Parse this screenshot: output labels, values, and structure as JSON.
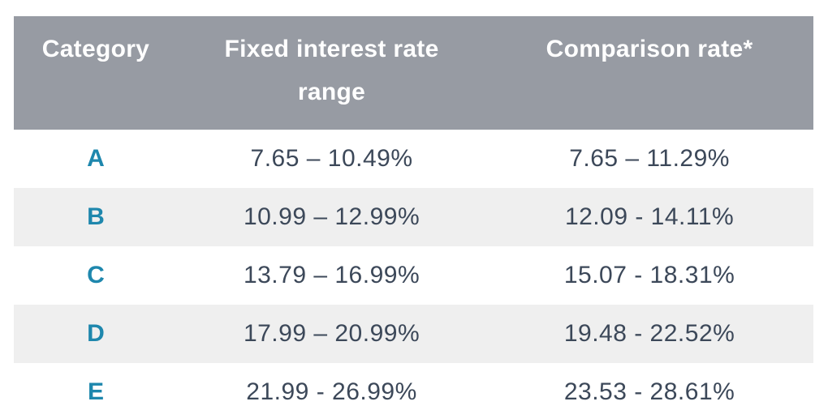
{
  "colors": {
    "page_bg": "#ffffff",
    "header_bg": "#979ba3",
    "header_text": "#ffffff",
    "row_bg": "#ffffff",
    "zebra_bg": "#efefef",
    "category_text": "#1e87ad",
    "value_text": "#3c4859"
  },
  "table": {
    "headers": {
      "category": "Category",
      "fixed": "Fixed interest rate range",
      "comparison": "Comparison rate*"
    },
    "rows": [
      {
        "category": "A",
        "fixed": "7.65 – 10.49%",
        "comparison": "7.65 – 11.29%"
      },
      {
        "category": "B",
        "fixed": "10.99 – 12.99%",
        "comparison": "12.09 - 14.11%"
      },
      {
        "category": "C",
        "fixed": "13.79 – 16.99%",
        "comparison": "15.07 - 18.31%"
      },
      {
        "category": "D",
        "fixed": "17.99 – 20.99%",
        "comparison": "19.48 - 22.52%"
      },
      {
        "category": "E",
        "fixed": "21.99 - 26.99%",
        "comparison": "23.53 - 28.61%"
      }
    ]
  },
  "chart_data": {
    "type": "table",
    "columns": [
      "Category",
      "Fixed interest rate range",
      "Comparison rate*"
    ],
    "rows": [
      [
        "A",
        "7.65 – 10.49%",
        "7.65 – 11.29%"
      ],
      [
        "B",
        "10.99 – 12.99%",
        "12.09 - 14.11%"
      ],
      [
        "C",
        "13.79 – 16.99%",
        "15.07 - 18.31%"
      ],
      [
        "D",
        "17.99 – 20.99%",
        "19.48 - 22.52%"
      ],
      [
        "E",
        "21.99 - 26.99%",
        "23.53 - 28.61%"
      ]
    ],
    "notes": "Interest rate ranges per risk category; asterisk on Comparison rate indicates footnote; zebra-striped rows, no gridlines"
  }
}
